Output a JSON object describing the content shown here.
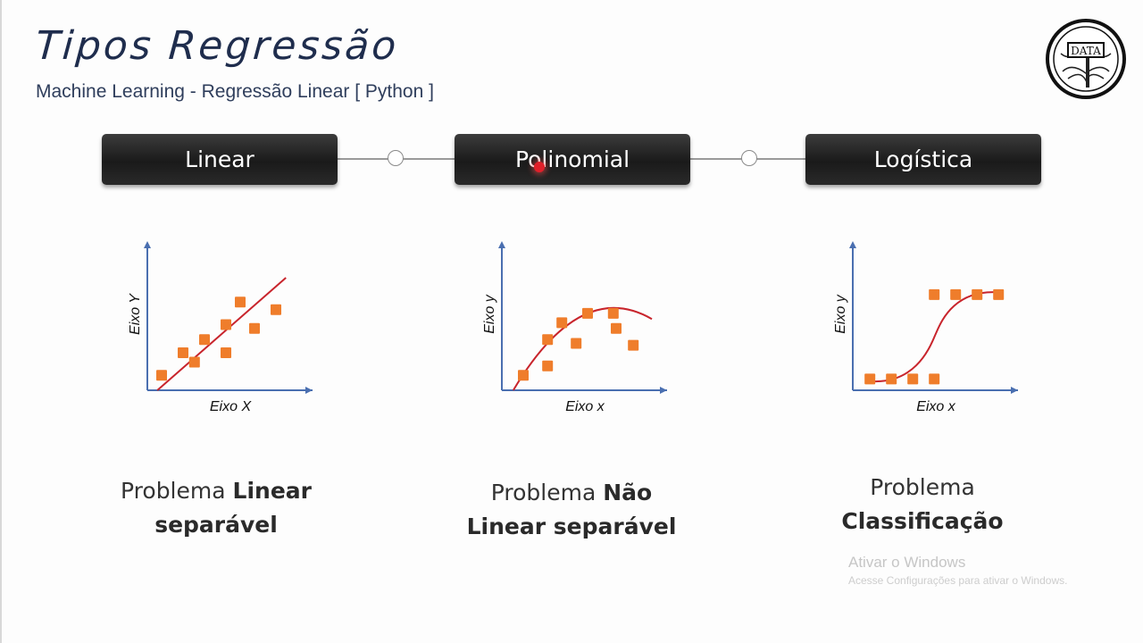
{
  "header": {
    "title": "Tipos Regressão",
    "subtitle": "Machine Learning - Regressão Linear [ Python ]",
    "logo_text": "DATA"
  },
  "tabs": [
    {
      "label": "Linear"
    },
    {
      "label": "Polinomial"
    },
    {
      "label": "Logística"
    }
  ],
  "charts": [
    {
      "xlabel": "Eixo X",
      "ylabel": "Eixo Y",
      "points": [
        [
          10,
          8
        ],
        [
          25,
          20
        ],
        [
          33,
          15
        ],
        [
          40,
          27
        ],
        [
          55,
          20
        ],
        [
          55,
          35
        ],
        [
          65,
          47
        ],
        [
          75,
          33
        ],
        [
          90,
          43
        ]
      ],
      "curve": "linear"
    },
    {
      "xlabel": "Eixo x",
      "ylabel": "Eixo y",
      "points": [
        [
          15,
          8
        ],
        [
          32,
          13
        ],
        [
          32,
          27
        ],
        [
          42,
          36
        ],
        [
          52,
          25
        ],
        [
          60,
          41
        ],
        [
          78,
          41
        ],
        [
          80,
          33
        ],
        [
          92,
          24
        ]
      ],
      "curve": "polynomial"
    },
    {
      "xlabel": "Eixo x",
      "ylabel": "Eixo y",
      "points": [
        [
          12,
          6
        ],
        [
          27,
          6
        ],
        [
          42,
          6
        ],
        [
          57,
          6
        ],
        [
          57,
          51
        ],
        [
          72,
          51
        ],
        [
          87,
          51
        ],
        [
          102,
          51
        ]
      ],
      "curve": "sigmoid"
    }
  ],
  "captions": [
    {
      "line1_plain": "Problema ",
      "line1_bold": "Linear",
      "line2_bold": "separável"
    },
    {
      "line1_plain": "Problema ",
      "line1_bold": "Não",
      "line2_bold": "Linear separável"
    },
    {
      "line1_plain": "Problema",
      "line1_bold": "",
      "line2_bold": "Classificação"
    }
  ],
  "watermark": {
    "line1": "Ativar o Windows",
    "line2": "Acesse Configurações para ativar o Windows."
  },
  "colors": {
    "axis": "#4a6fb0",
    "curve": "#c8242c",
    "point": "#ef7d2b"
  }
}
